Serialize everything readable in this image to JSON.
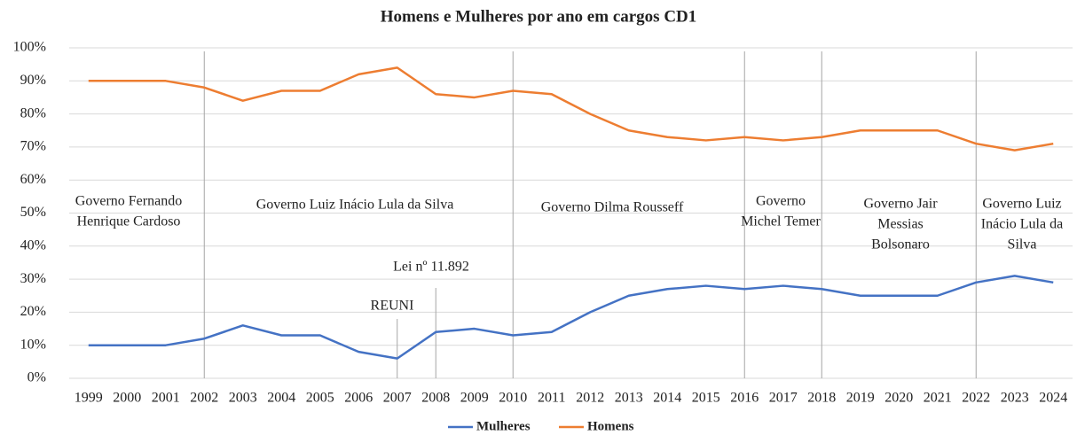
{
  "chart_data": {
    "type": "line",
    "title": "Homens e Mulheres por ano em cargos CD1",
    "categories": [
      "1999",
      "2000",
      "2001",
      "2002",
      "2003",
      "2004",
      "2005",
      "2006",
      "2007",
      "2008",
      "2009",
      "2010",
      "2011",
      "2012",
      "2013",
      "2014",
      "2015",
      "2016",
      "2017",
      "2018",
      "2019",
      "2020",
      "2021",
      "2022",
      "2023",
      "2024"
    ],
    "series": [
      {
        "name": "Mulheres",
        "color": "#4472c4",
        "values": [
          10,
          10,
          10,
          12,
          16,
          13,
          13,
          8,
          6,
          14,
          15,
          13,
          14,
          20,
          25,
          27,
          28,
          27,
          28,
          27,
          25,
          25,
          25,
          29,
          31,
          29
        ]
      },
      {
        "name": "Homens",
        "color": "#ed7d31",
        "values": [
          90,
          90,
          90,
          88,
          84,
          87,
          87,
          92,
          94,
          86,
          85,
          87,
          86,
          80,
          75,
          73,
          72,
          73,
          72,
          73,
          75,
          75,
          75,
          71,
          69,
          71
        ]
      }
    ],
    "ylim": [
      0,
      100
    ],
    "yticks": [
      {
        "value": 0,
        "label": "0%"
      },
      {
        "value": 10,
        "label": "10%"
      },
      {
        "value": 20,
        "label": "20%"
      },
      {
        "value": 30,
        "label": "30%"
      },
      {
        "value": 40,
        "label": "40%"
      },
      {
        "value": 50,
        "label": "50%"
      },
      {
        "value": 60,
        "label": "60%"
      },
      {
        "value": 70,
        "label": "70%"
      },
      {
        "value": 80,
        "label": "80%"
      },
      {
        "value": 90,
        "label": "90%"
      },
      {
        "value": 100,
        "label": "100%"
      }
    ],
    "grid": true,
    "legend": "bottom",
    "dividers": [
      "2002",
      "2010",
      "2016",
      "2018",
      "2022"
    ],
    "annotations": [
      {
        "lines": [
          "Governo Fernando",
          "Henrique Cardoso"
        ]
      },
      {
        "lines": [
          "Governo Luiz Inácio Lula da Silva"
        ]
      },
      {
        "lines": [
          "Governo Dilma Rousseff"
        ]
      },
      {
        "lines": [
          "Governo",
          "Michel Temer"
        ]
      },
      {
        "lines": [
          "Governo Jair",
          "Messias",
          "Bolsonaro"
        ]
      },
      {
        "lines": [
          "Governo Luiz",
          "Inácio Lula da",
          "Silva"
        ]
      },
      {
        "lines": [
          "Lei nº 11.892"
        ]
      },
      {
        "lines": [
          "REUNI"
        ]
      }
    ]
  }
}
